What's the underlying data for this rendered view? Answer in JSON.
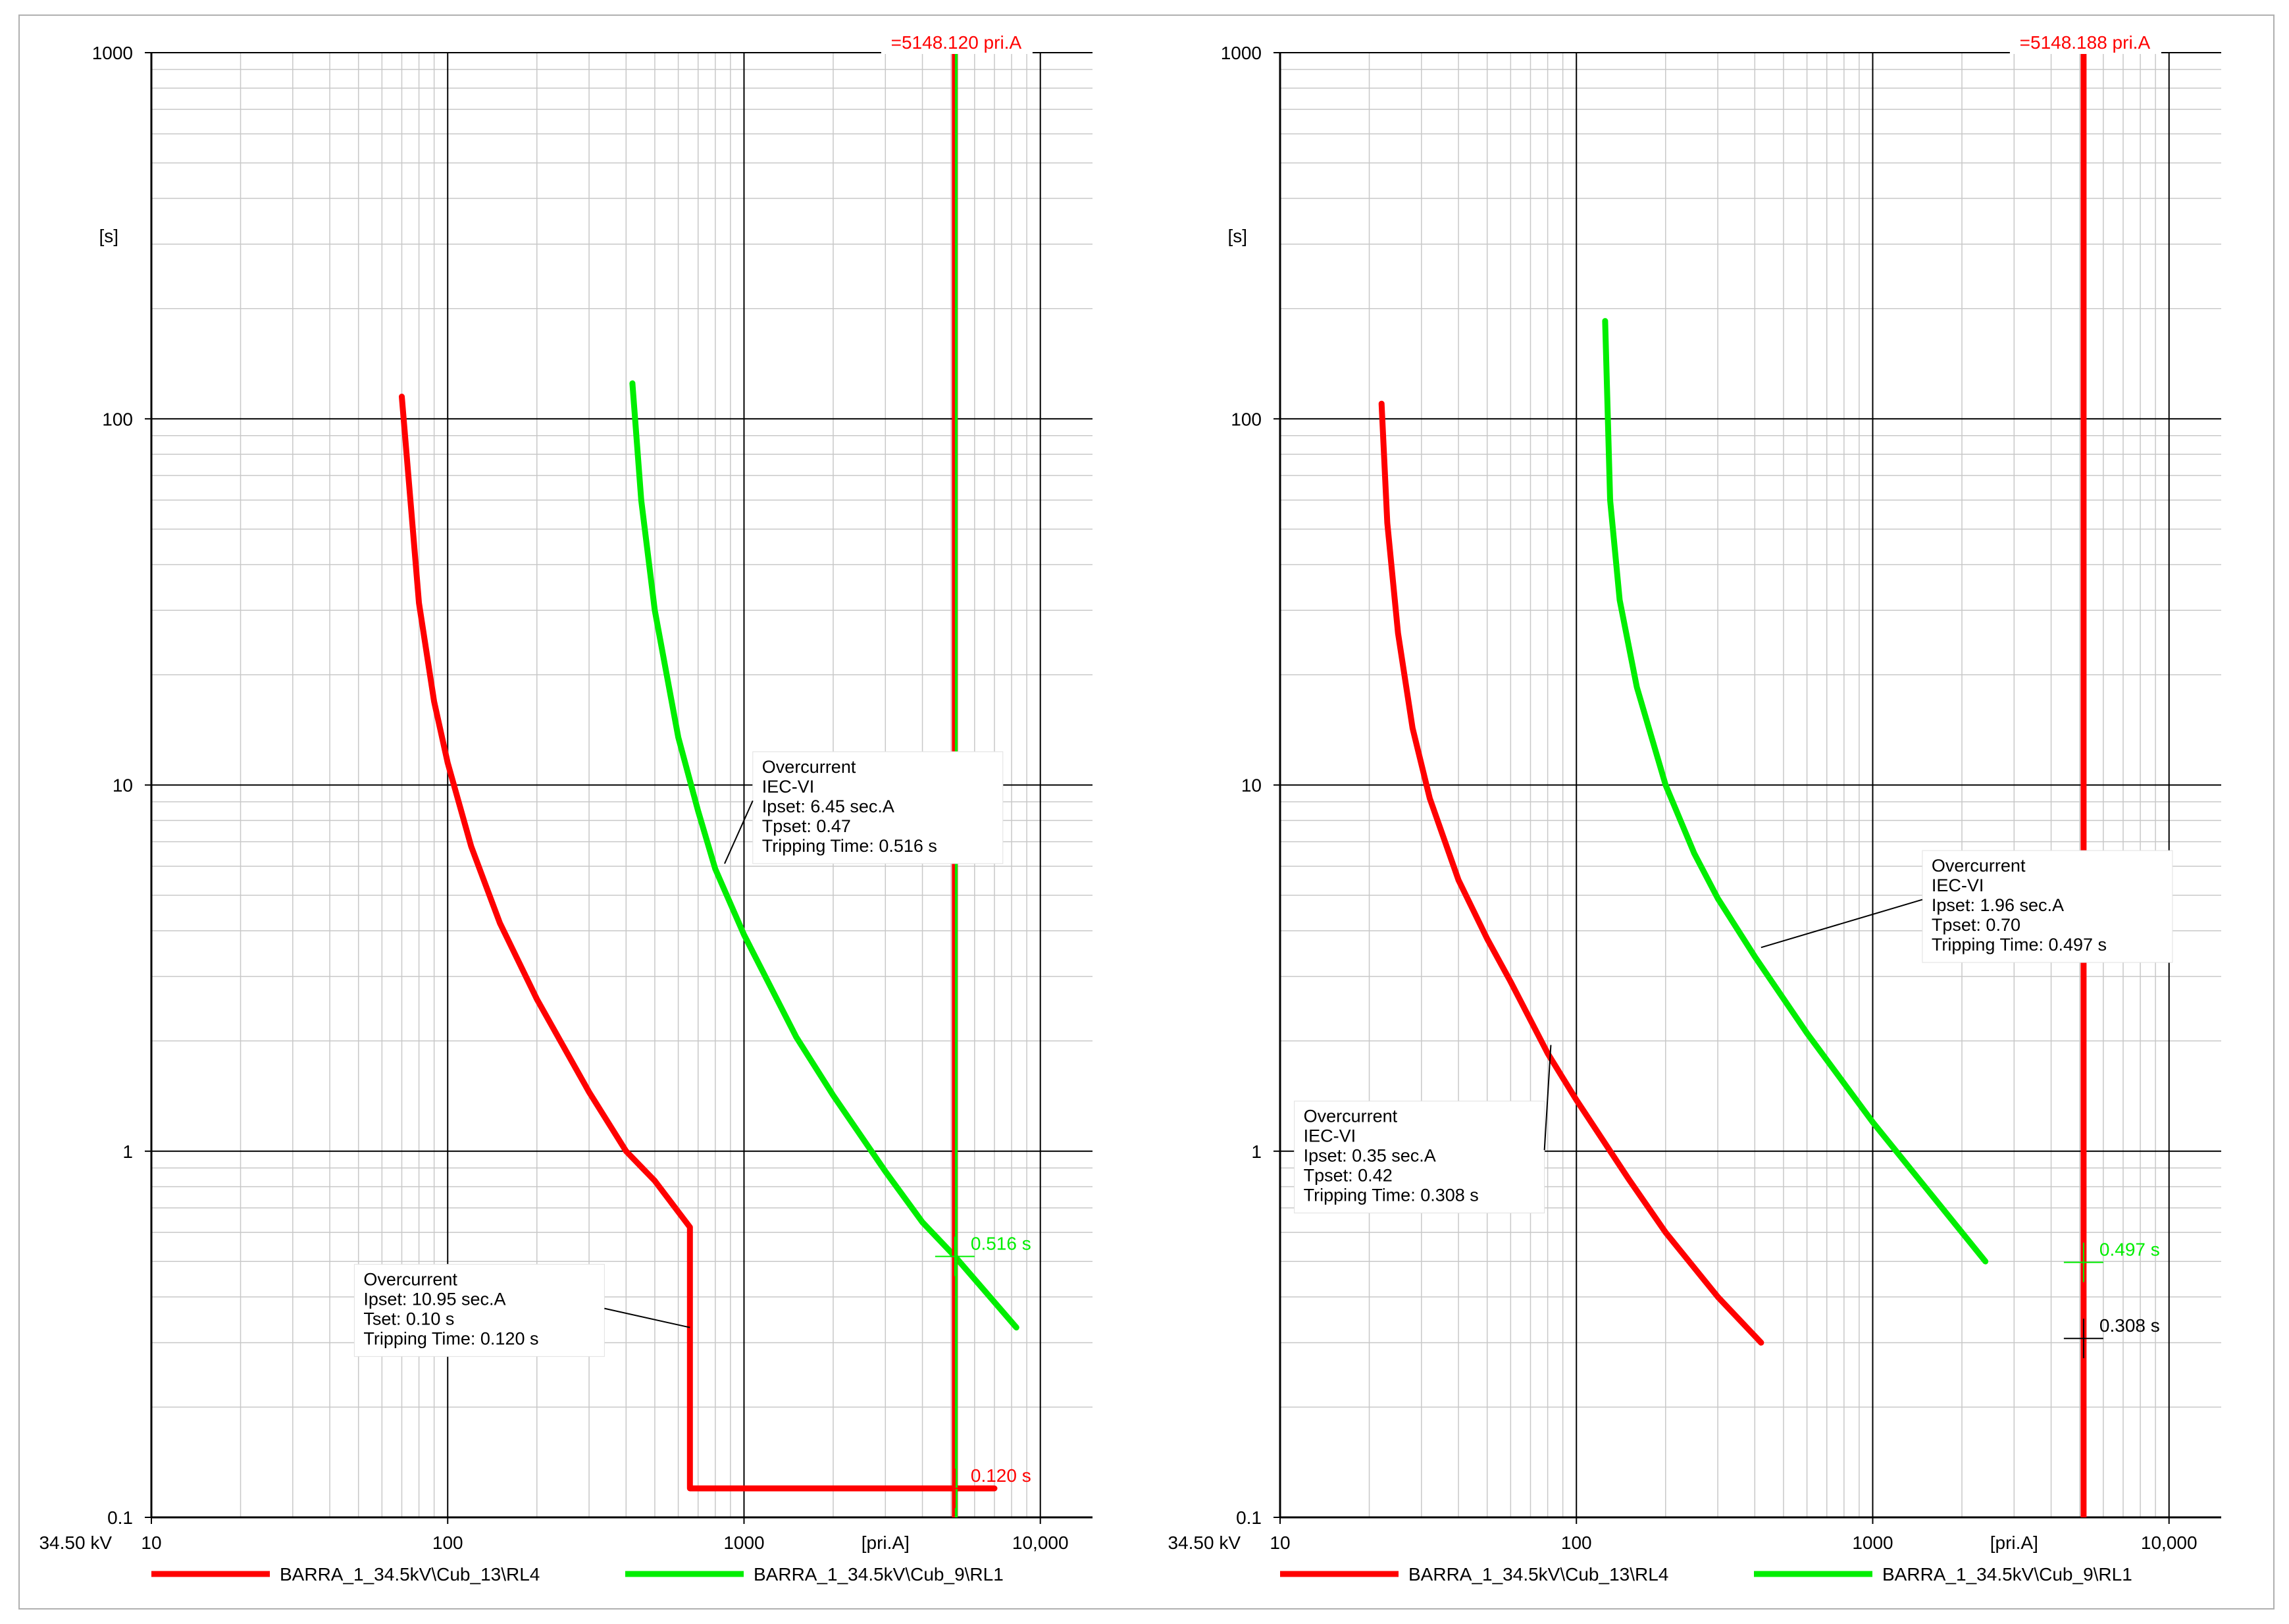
{
  "chart_data": [
    {
      "type": "line",
      "xscale": "log",
      "yscale": "log",
      "xlim": [
        10,
        15000
      ],
      "ylim": [
        0.1,
        1000
      ],
      "grid": true,
      "legend_position": "bottom",
      "voltage_label": "34.50 kV",
      "xlabel": "[pri.A]",
      "ylabel": "[s]",
      "x_ticks": [
        10,
        100,
        1000,
        10000
      ],
      "x_tick_labels": [
        "10",
        "100",
        "1000",
        "10,000"
      ],
      "y_ticks": [
        0.1,
        1,
        10,
        100,
        1000
      ],
      "y_tick_labels": [
        "0.1",
        "1",
        "10",
        "100",
        "1000"
      ],
      "fault_current": 5148.12,
      "fault_label": "=5148.120 pri.A",
      "series": [
        {
          "name": "BARRA_1_34.5kV\\Cub_13\\RL4",
          "color": "#ff0000",
          "x": [
            70,
            80,
            90,
            100,
            120,
            150,
            200,
            300,
            400,
            500,
            657,
            657,
            900,
            1500,
            3000,
            5148.12,
            7000
          ],
          "y": [
            115,
            31.4,
            16.9,
            11.5,
            6.8,
            4.2,
            2.6,
            1.45,
            1.0,
            0.83,
            0.62,
            0.12,
            0.12,
            0.12,
            0.12,
            0.12,
            0.12
          ]
        },
        {
          "name": "BARRA_1_34.5kV\\Cub_9\\RL1",
          "color": "#00ee00",
          "x": [
            420,
            450,
            500,
            600,
            700,
            800,
            1000,
            1500,
            2000,
            3000,
            4000,
            5148.12,
            8300
          ],
          "y": [
            125,
            60,
            30,
            13.5,
            8.5,
            5.9,
            3.9,
            2.05,
            1.42,
            0.88,
            0.64,
            0.516,
            0.33
          ]
        }
      ],
      "markers": [
        {
          "x": 5148.12,
          "y": 0.516,
          "label": "0.516 s",
          "color": "#00ee00"
        },
        {
          "x": 5148.12,
          "y": 0.12,
          "label": "0.120 s",
          "color": "#ff0000"
        }
      ],
      "annotations": [
        {
          "lines": [
            "Overcurrent",
            "IEC-VI",
            "Ipset: 6.45 sec.A",
            "Tpset: 0.47",
            "Tripping Time: 0.516 s"
          ],
          "box_x": 1150,
          "box_y": 10.8,
          "leader_x": 860,
          "leader_y": 6.1
        },
        {
          "lines": [
            "Overcurrent",
            "Ipset: 10.95 sec.A",
            "Tset: 0.10 s",
            "Tripping Time: 0.120 s"
          ],
          "box_x": 52,
          "box_y": 0.43,
          "leader_x": 657,
          "leader_y": 0.33
        }
      ]
    },
    {
      "type": "line",
      "xscale": "log",
      "yscale": "log",
      "xlim": [
        10,
        15000
      ],
      "ylim": [
        0.1,
        1000
      ],
      "grid": true,
      "legend_position": "bottom",
      "voltage_label": "34.50 kV",
      "xlabel": "[pri.A]",
      "ylabel": "[s]",
      "x_ticks": [
        10,
        100,
        1000,
        10000
      ],
      "x_tick_labels": [
        "10",
        "100",
        "1000",
        "10,000"
      ],
      "y_ticks": [
        0.1,
        1,
        10,
        100,
        1000
      ],
      "y_tick_labels": [
        "0.1",
        "1",
        "10",
        "100",
        "1000"
      ],
      "fault_current": 5148.188,
      "fault_label": "=5148.188 pri.A",
      "series": [
        {
          "name": "BARRA_1_34.5kV\\Cub_13\\RL4",
          "color": "#ff0000",
          "x": [
            22,
            23,
            25,
            28,
            32,
            40,
            50,
            60,
            80,
            100,
            150,
            200,
            300,
            420
          ],
          "y": [
            110,
            52,
            26,
            14.3,
            9.2,
            5.5,
            3.8,
            2.9,
            1.85,
            1.38,
            0.84,
            0.6,
            0.4,
            0.3
          ]
        },
        {
          "name": "BARRA_1_34.5kV\\Cub_9\\RL1",
          "color": "#00ee00",
          "x": [
            125,
            130,
            140,
            160,
            200,
            250,
            300,
            400,
            600,
            1000,
            1500,
            2400
          ],
          "y": [
            185,
            60,
            32,
            18.5,
            10,
            6.5,
            4.9,
            3.4,
            2.1,
            1.2,
            0.8,
            0.5
          ]
        }
      ],
      "markers": [
        {
          "x": 5148.188,
          "y": 0.497,
          "label": "0.497 s",
          "color": "#00ee00"
        },
        {
          "x": 5148.188,
          "y": 0.308,
          "label": "0.308 s",
          "color": "#000000"
        }
      ],
      "annotations": [
        {
          "lines": [
            "Overcurrent",
            "IEC-VI",
            "Ipset: 1.96 sec.A",
            "Tpset: 0.70",
            "Tripping Time: 0.497 s"
          ],
          "box_x": 1580,
          "box_y": 5.8,
          "leader_x": 420,
          "leader_y": 3.6
        },
        {
          "lines": [
            "Overcurrent",
            "IEC-VI",
            "Ipset: 0.35 sec.A",
            "Tpset: 0.42",
            "Tripping Time: 0.308 s"
          ],
          "box_x": 12,
          "box_y": 1.2,
          "leader_x": 82,
          "leader_y": 1.95
        }
      ]
    }
  ]
}
